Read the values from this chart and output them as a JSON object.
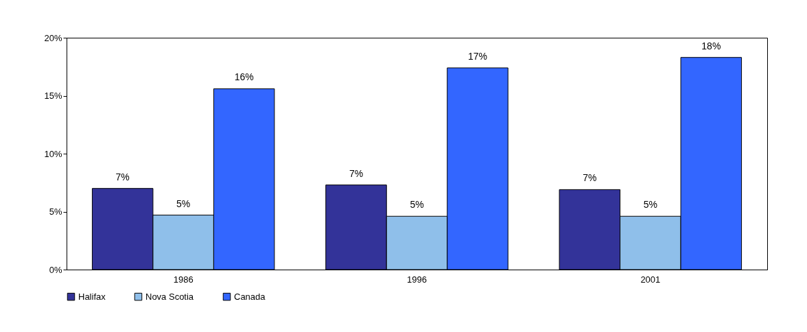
{
  "chart_data": {
    "type": "bar",
    "categories": [
      "1986",
      "1996",
      "2001"
    ],
    "series": [
      {
        "name": "Halifax",
        "color": "#333399",
        "values": [
          7.0,
          7.3,
          6.9
        ],
        "value_labels": [
          "7%",
          "7%",
          "7%"
        ]
      },
      {
        "name": "Nova Scotia",
        "color": "#8fbfea",
        "values": [
          4.7,
          4.6,
          4.6
        ],
        "value_labels": [
          "5%",
          "5%",
          "5%"
        ]
      },
      {
        "name": "Canada",
        "color": "#3366ff",
        "values": [
          15.6,
          17.4,
          18.3
        ],
        "value_labels": [
          "16%",
          "17%",
          "18%"
        ]
      }
    ],
    "ylim": [
      0,
      20
    ],
    "yticks": [
      {
        "value": 0,
        "label": "0%"
      },
      {
        "value": 5,
        "label": "5%"
      },
      {
        "value": 10,
        "label": "10%"
      },
      {
        "value": 15,
        "label": "15%"
      },
      {
        "value": 20,
        "label": "20%"
      }
    ],
    "grid": false,
    "legend": "bottom"
  }
}
